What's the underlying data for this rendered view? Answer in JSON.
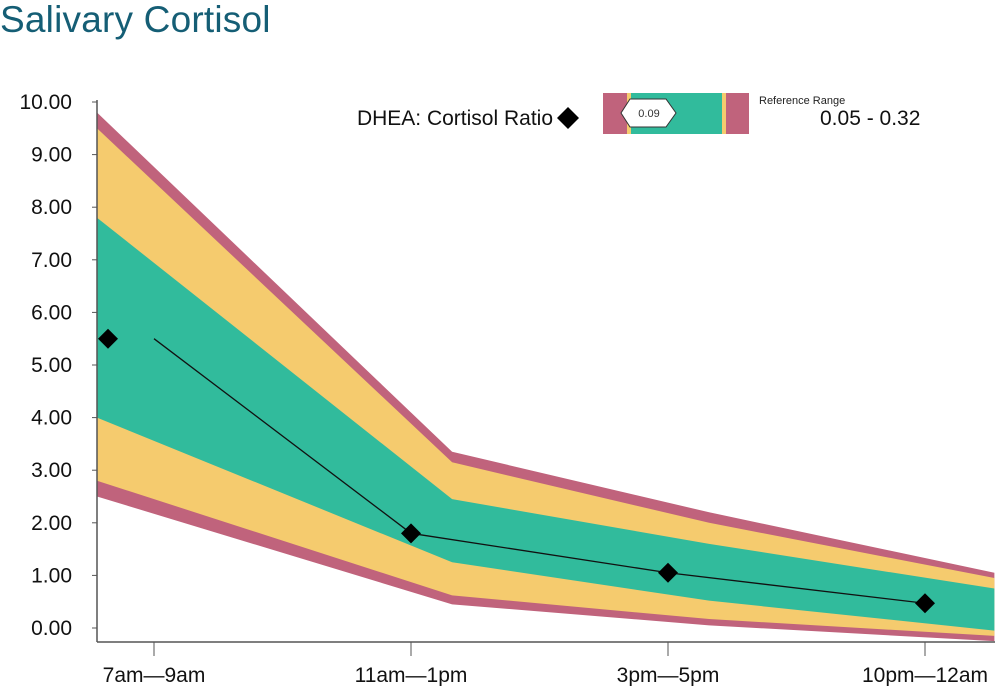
{
  "title": "Salivary Cortisol",
  "colors": {
    "title": "#155e75",
    "red_band": "#c0637c",
    "yellow_band": "#f5cb6e",
    "green_band": "#31bb9c",
    "data_line": "#111111",
    "axis": "#555555"
  },
  "chart_data": {
    "type": "line",
    "title": "Salivary Cortisol",
    "categories": [
      "7am—9am",
      "11am—1pm",
      "3pm—5pm",
      "10pm—12am"
    ],
    "series": [
      {
        "values": [
          5.5,
          1.8,
          1.05,
          0.47
        ]
      }
    ],
    "ylim": [
      0,
      10
    ],
    "yticks": [
      0,
      1,
      2,
      3,
      4,
      5,
      6,
      7,
      8,
      9,
      10
    ],
    "ytick_labels": [
      "0.00",
      "1.00",
      "2.00",
      "3.00",
      "4.00",
      "5.00",
      "6.00",
      "7.00",
      "8.00",
      "9.00",
      "10.00"
    ],
    "band_x": [
      0,
      1.16,
      2.16,
      3.27
    ],
    "bands": {
      "red": {
        "upper": [
          9.8,
          3.35,
          2.2,
          1.05
        ],
        "lower": [
          2.5,
          0.45,
          0.05,
          -0.25
        ]
      },
      "yellow": {
        "upper": [
          9.5,
          3.15,
          2.0,
          0.95
        ],
        "lower": [
          2.8,
          0.62,
          0.17,
          -0.15
        ]
      },
      "green": {
        "upper": [
          7.8,
          2.45,
          1.6,
          0.75
        ],
        "lower": [
          4.0,
          1.25,
          0.52,
          -0.05
        ]
      }
    },
    "grid": false
  },
  "legend": {
    "ratio_label": "DHEA: Cortisol Ratio",
    "marker_value": "0.09",
    "reference_title": "Reference Range",
    "reference_value": "0.05 - 0.32"
  }
}
